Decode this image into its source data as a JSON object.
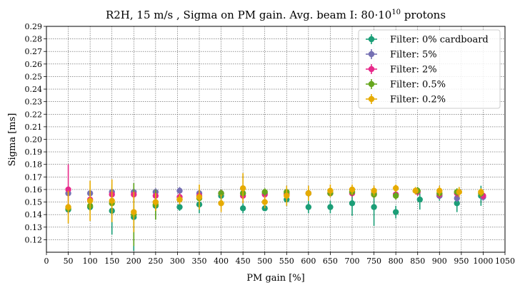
{
  "chart_data": {
    "type": "scatter",
    "title": "R2H, 15 m/s , Sigma on PM gain. Avg. beam I: 80·10",
    "title_superscript": "10",
    "title_suffix": " protons",
    "xlabel": "PM gain [%]",
    "ylabel": "Sigma [ms]",
    "xlim": [
      0,
      1050
    ],
    "ylim": [
      0.11,
      0.29
    ],
    "x_ticks": [
      0,
      50,
      100,
      150,
      200,
      250,
      300,
      350,
      400,
      450,
      500,
      550,
      600,
      650,
      700,
      750,
      800,
      850,
      900,
      950,
      1000,
      1050
    ],
    "x_tick_labels": [
      "0",
      "50",
      "100",
      "150",
      "200",
      "250",
      "300",
      "350",
      "400",
      "450",
      "500",
      "550",
      "600",
      "650",
      "700",
      "750",
      "800",
      "850",
      "900",
      "950",
      "1000",
      "1050"
    ],
    "y_ticks": [
      0.12,
      0.13,
      0.14,
      0.15,
      0.16,
      0.17,
      0.18,
      0.19,
      0.2,
      0.21,
      0.22,
      0.23,
      0.24,
      0.25,
      0.26,
      0.27,
      0.28,
      0.29
    ],
    "y_tick_labels": [
      "0.12",
      "0.13",
      "0.14",
      "0.15",
      "0.16",
      "0.17",
      "0.18",
      "0.19",
      "0.20",
      "0.21",
      "0.22",
      "0.23",
      "0.24",
      "0.25",
      "0.26",
      "0.27",
      "0.28",
      "0.29"
    ],
    "grid": true,
    "legend_position": "top-right",
    "series": [
      {
        "name": "Filter: 0% cardboard",
        "color": "#1b9e77",
        "x": [
          50,
          100,
          150,
          200,
          250,
          305,
          350,
          400,
          450,
          500,
          550,
          600,
          650,
          700,
          750,
          800,
          855,
          900,
          940,
          995
        ],
        "y": [
          0.144,
          0.146,
          0.143,
          0.138,
          0.147,
          0.146,
          0.148,
          0.155,
          0.145,
          0.145,
          0.152,
          0.146,
          0.146,
          0.149,
          0.146,
          0.142,
          0.152,
          0.155,
          0.149,
          0.155
        ],
        "err": [
          0.003,
          0.003,
          0.019,
          0.027,
          0.011,
          0.003,
          0.007,
          0.004,
          0.004,
          0.002,
          0.005,
          0.005,
          0.005,
          0.01,
          0.015,
          0.005,
          0.008,
          0.004,
          0.007,
          0.008
        ]
      },
      {
        "name": "Filter: 5%",
        "color": "#7570b3",
        "x": [
          50,
          100,
          150,
          200,
          250,
          305,
          350,
          400,
          450,
          500,
          550,
          600,
          650,
          700,
          750,
          800,
          850,
          900,
          940,
          1000
        ],
        "y": [
          0.157,
          0.157,
          0.158,
          0.158,
          0.158,
          0.159,
          0.157,
          0.157,
          0.157,
          0.157,
          0.157,
          0.157,
          0.157,
          0.158,
          0.157,
          0.156,
          0.159,
          0.155,
          0.153,
          0.154
        ],
        "err": [
          0.003,
          0.003,
          0.003,
          0.003,
          0.003,
          0.003,
          0.003,
          0.003,
          0.003,
          0.003,
          0.003,
          0.003,
          0.003,
          0.003,
          0.003,
          0.003,
          0.002,
          0.003,
          0.003,
          0.003
        ]
      },
      {
        "name": "Filter: 2%",
        "color": "#e7298a",
        "x": [
          50,
          100,
          150,
          200,
          250,
          305,
          350,
          400,
          450,
          500,
          550,
          600,
          650,
          700,
          750,
          800,
          850,
          900,
          940,
          1000
        ],
        "y": [
          0.16,
          0.152,
          0.156,
          0.156,
          0.155,
          0.154,
          0.155,
          0.157,
          0.155,
          0.156,
          0.156,
          0.157,
          0.157,
          0.157,
          0.156,
          0.156,
          0.158,
          0.156,
          0.157,
          0.155
        ],
        "err": [
          0.02,
          0.004,
          0.004,
          0.004,
          0.004,
          0.003,
          0.003,
          0.003,
          0.003,
          0.003,
          0.003,
          0.003,
          0.003,
          0.003,
          0.003,
          0.003,
          0.003,
          0.003,
          0.003,
          0.003
        ]
      },
      {
        "name": "Filter: 0.5%",
        "color": "#66a61e",
        "x": [
          50,
          100,
          150,
          200,
          250,
          305,
          350,
          400,
          450,
          500,
          550,
          600,
          650,
          700,
          750,
          800,
          850,
          900,
          940,
          995
        ],
        "y": [
          0.145,
          0.147,
          0.149,
          0.14,
          0.148,
          0.152,
          0.153,
          0.157,
          0.157,
          0.158,
          0.158,
          0.157,
          0.157,
          0.158,
          0.156,
          0.155,
          0.159,
          0.157,
          0.158,
          0.157
        ],
        "err": [
          0.003,
          0.004,
          0.015,
          0.025,
          0.012,
          0.003,
          0.004,
          0.003,
          0.003,
          0.003,
          0.003,
          0.003,
          0.003,
          0.003,
          0.003,
          0.003,
          0.003,
          0.003,
          0.003,
          0.003
        ]
      },
      {
        "name": "Filter: 0.2%",
        "color": "#e6ab02",
        "x": [
          50,
          100,
          150,
          200,
          250,
          305,
          350,
          400,
          450,
          500,
          550,
          600,
          650,
          700,
          750,
          800,
          845,
          900,
          945,
          995
        ],
        "y": [
          0.146,
          0.151,
          0.151,
          0.142,
          0.15,
          0.152,
          0.154,
          0.149,
          0.161,
          0.15,
          0.155,
          0.157,
          0.159,
          0.16,
          0.159,
          0.161,
          0.159,
          0.159,
          0.158,
          0.158
        ],
        "err": [
          0.013,
          0.016,
          0.017,
          0.016,
          0.007,
          0.004,
          0.01,
          0.007,
          0.012,
          0.005,
          0.008,
          0.006,
          0.005,
          0.004,
          0.004,
          0.003,
          0.003,
          0.004,
          0.004,
          0.003
        ]
      }
    ]
  }
}
